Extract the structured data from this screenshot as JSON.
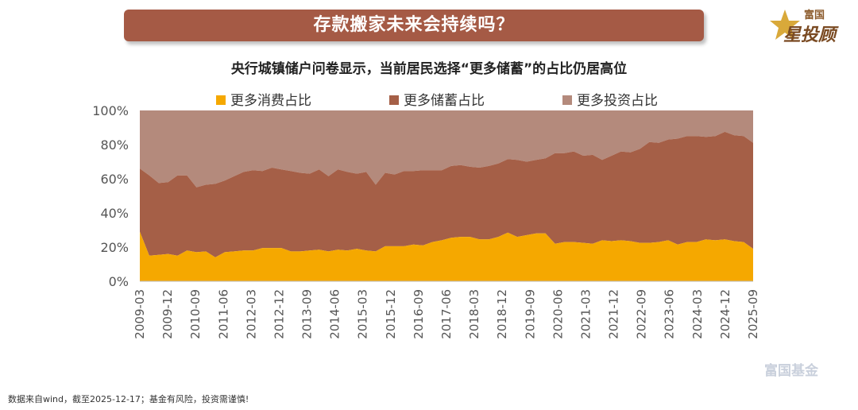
{
  "banner": {
    "title": "存款搬家未来会持续吗？"
  },
  "logo": {
    "top": "富国",
    "main": "星投顾"
  },
  "watermark": "富国基金",
  "footer": "数据来自wind，截至2025-12-17；基金有风险，投资需谨慎!",
  "colors": {
    "consume": "#f5a800",
    "save": "#a55f47",
    "invest": "#b48a7c"
  },
  "chart_data": {
    "type": "area",
    "stacked": true,
    "title": "央行城镇储户问卷显示，当前居民选择“更多储蓄”的占比仍居高位",
    "xlabel": "",
    "ylabel": "",
    "ylim": [
      0,
      100
    ],
    "yticks": [
      "0%",
      "20%",
      "40%",
      "60%",
      "80%",
      "100%"
    ],
    "xtick_labels": [
      "2009-03",
      "2009-12",
      "2010-09",
      "2011-06",
      "2012-03",
      "2012-12",
      "2013-09",
      "2014-06",
      "2015-03",
      "2015-12",
      "2016-09",
      "2017-06",
      "2018-03",
      "2018-12",
      "2019-09",
      "2020-06",
      "2021-03",
      "2021-12",
      "2022-09",
      "2023-06",
      "2024-03",
      "2024-12",
      "2025-09"
    ],
    "series": [
      {
        "name": "更多消费占比",
        "values": [
          29,
          15,
          15.5,
          16,
          15,
          18,
          17,
          17.5,
          14,
          17,
          17.5,
          18,
          18,
          19.5,
          19.5,
          19.5,
          17.5,
          17.5,
          18,
          18.5,
          17.5,
          18.5,
          18,
          19,
          18,
          17.5,
          20.5,
          20.5,
          20.5,
          21.5,
          21,
          23,
          24,
          25.5,
          26,
          26,
          24.5,
          24.5,
          26,
          28.5,
          26,
          27,
          28,
          28,
          22,
          23,
          23,
          22.5,
          22,
          24,
          23.5,
          24,
          23.5,
          22.5,
          22.5,
          23,
          24,
          21.5,
          23,
          23,
          24.5,
          24,
          24.5,
          23.5,
          23,
          19
        ]
      },
      {
        "name": "更多储蓄占比",
        "values": [
          37,
          47,
          42,
          42,
          47,
          44,
          38,
          39,
          43,
          42,
          44,
          46,
          47,
          45,
          47,
          46,
          47,
          46,
          45,
          47,
          44,
          47,
          46,
          44,
          46,
          39,
          43,
          42,
          44,
          43,
          44,
          42,
          41,
          42,
          42,
          41,
          42,
          43,
          43,
          43,
          45,
          43,
          43,
          44,
          53,
          52,
          53,
          51,
          52,
          47,
          50,
          52,
          52,
          55,
          59,
          58,
          59,
          62,
          62,
          62,
          60,
          61,
          63,
          62,
          62,
          62
        ]
      }
    ],
    "legend": [
      "更多消费占比",
      "更多储蓄占比",
      "更多投资占比"
    ]
  }
}
